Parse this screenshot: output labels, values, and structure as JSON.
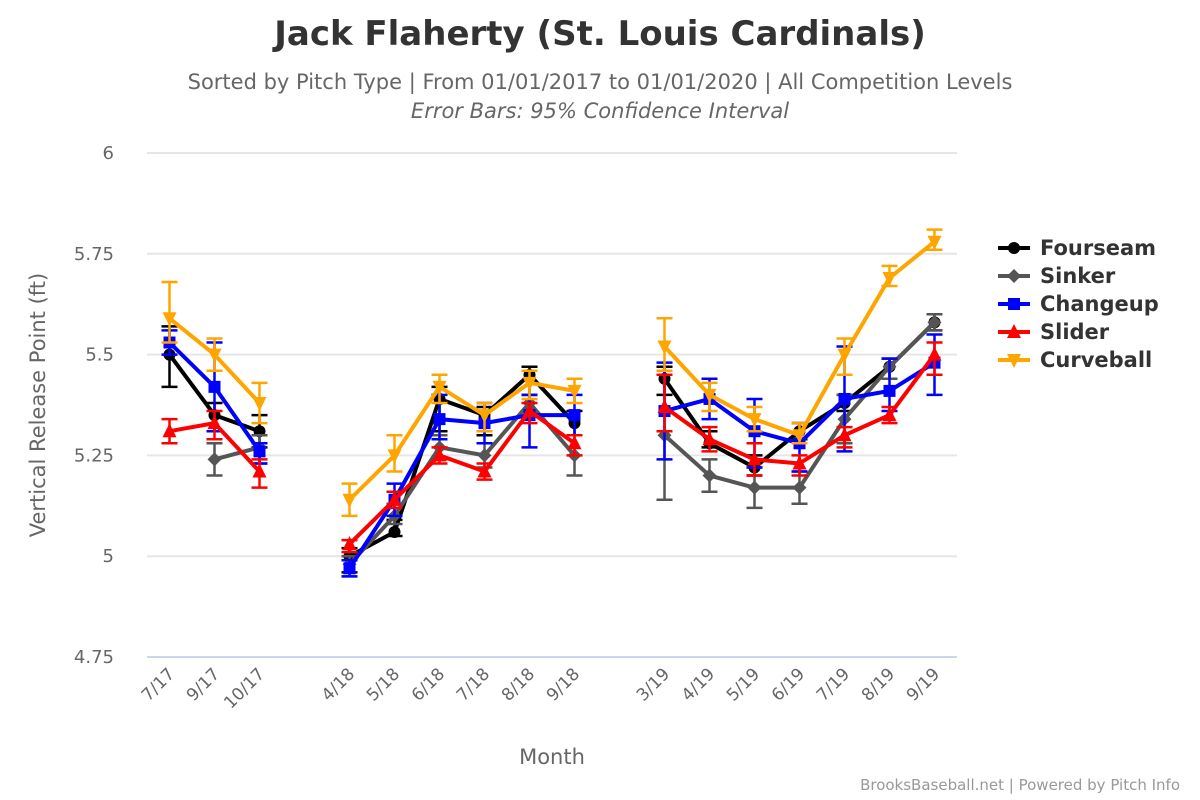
{
  "title": "Jack Flaherty (St. Louis Cardinals)",
  "subtitle": "Sorted by Pitch Type | From 01/01/2017 to 01/01/2020 | All Competition Levels",
  "subtitle2": "Error Bars: 95% Confidence Interval",
  "credits": "BrooksBaseball.net | Powered by Pitch Info",
  "chart_data": {
    "type": "line",
    "title": "Jack Flaherty (St. Louis Cardinals)",
    "xlabel": "Month",
    "ylabel": "Vertical Release Point (ft)",
    "ylim": [
      4.75,
      6
    ],
    "yticks": [
      "4.75",
      "5",
      "5.25",
      "5.5",
      "5.75",
      "6"
    ],
    "x_slots": 18,
    "x_index": [
      0,
      1,
      2,
      4,
      5,
      6,
      7,
      8,
      9,
      11,
      12,
      13,
      14,
      15,
      16,
      17
    ],
    "categories": [
      "7/17",
      "9/17",
      "10/17",
      "4/18",
      "5/18",
      "6/18",
      "7/18",
      "8/18",
      "9/18",
      "3/19",
      "4/19",
      "5/19",
      "6/19",
      "7/19",
      "8/19",
      "9/19"
    ],
    "legend_position": "right",
    "grid": true,
    "series": [
      {
        "name": "Fourseam",
        "color": "#000000",
        "marker": "circle",
        "values": [
          5.5,
          5.35,
          5.31,
          5.0,
          5.06,
          5.39,
          5.35,
          5.45,
          5.33,
          5.44,
          5.28,
          5.22,
          5.31,
          5.38,
          5.47,
          5.58
        ],
        "error": [
          [
            5.42,
            5.57
          ],
          [
            5.31,
            5.38
          ],
          [
            5.27,
            5.35
          ],
          [
            4.96,
            5.02
          ],
          [
            5.05,
            5.09
          ],
          [
            5.31,
            5.42
          ],
          [
            5.3,
            5.37
          ],
          [
            5.4,
            5.47
          ],
          [
            5.3,
            5.36
          ],
          [
            5.4,
            5.47
          ],
          [
            5.27,
            5.31
          ],
          [
            5.2,
            5.25
          ],
          [
            5.29,
            5.33
          ],
          [
            5.36,
            5.4
          ],
          [
            5.44,
            5.49
          ],
          [
            5.56,
            5.6
          ]
        ]
      },
      {
        "name": "Sinker",
        "color": "#555555",
        "marker": "diamond",
        "values": [
          null,
          5.24,
          5.27,
          4.98,
          5.1,
          5.27,
          5.25,
          5.38,
          5.25,
          5.3,
          5.2,
          5.17,
          5.17,
          5.34,
          5.47,
          5.58
        ],
        "error": [
          null,
          [
            5.2,
            5.28
          ],
          [
            5.23,
            5.3
          ],
          [
            4.95,
            5.0
          ],
          [
            5.08,
            5.13
          ],
          [
            5.24,
            5.3
          ],
          [
            5.22,
            5.28
          ],
          [
            5.35,
            5.4
          ],
          [
            5.2,
            5.3
          ],
          [
            5.14,
            5.46
          ],
          [
            5.16,
            5.24
          ],
          [
            5.12,
            5.22
          ],
          [
            5.13,
            5.21
          ],
          [
            5.28,
            5.4
          ],
          [
            5.44,
            5.49
          ],
          [
            5.56,
            5.6
          ]
        ]
      },
      {
        "name": "Changeup",
        "color": "#0000ff",
        "marker": "square",
        "values": [
          5.53,
          5.42,
          5.26,
          4.97,
          5.14,
          5.34,
          5.33,
          5.35,
          5.35,
          5.36,
          5.39,
          5.31,
          5.28,
          5.39,
          5.41,
          5.48
        ],
        "error": [
          [
            5.5,
            5.56
          ],
          [
            5.31,
            5.53
          ],
          [
            5.23,
            5.28
          ],
          [
            4.95,
            4.99
          ],
          [
            5.1,
            5.18
          ],
          [
            5.29,
            5.4
          ],
          [
            5.28,
            5.38
          ],
          [
            5.27,
            5.4
          ],
          [
            5.3,
            5.4
          ],
          [
            5.24,
            5.48
          ],
          [
            5.34,
            5.44
          ],
          [
            5.22,
            5.39
          ],
          [
            5.21,
            5.33
          ],
          [
            5.26,
            5.52
          ],
          [
            5.36,
            5.49
          ],
          [
            5.4,
            5.55
          ]
        ]
      },
      {
        "name": "Slider",
        "color": "#ff0000",
        "marker": "triangle-up",
        "values": [
          5.31,
          5.33,
          5.21,
          5.03,
          5.14,
          5.25,
          5.21,
          5.36,
          5.28,
          5.37,
          5.29,
          5.24,
          5.23,
          5.3,
          5.35,
          5.5
        ],
        "error": [
          [
            5.28,
            5.34
          ],
          [
            5.29,
            5.36
          ],
          [
            5.17,
            5.24
          ],
          [
            5.01,
            5.04
          ],
          [
            5.12,
            5.16
          ],
          [
            5.23,
            5.27
          ],
          [
            5.19,
            5.23
          ],
          [
            5.33,
            5.38
          ],
          [
            5.25,
            5.3
          ],
          [
            5.31,
            5.45
          ],
          [
            5.26,
            5.32
          ],
          [
            5.2,
            5.28
          ],
          [
            5.2,
            5.25
          ],
          [
            5.27,
            5.32
          ],
          [
            5.33,
            5.37
          ],
          [
            5.45,
            5.53
          ]
        ]
      },
      {
        "name": "Curveball",
        "color": "#ffa500",
        "marker": "triangle-down",
        "values": [
          5.59,
          5.5,
          5.38,
          5.14,
          5.25,
          5.42,
          5.35,
          5.43,
          5.41,
          5.52,
          5.4,
          5.34,
          5.3,
          5.5,
          5.69,
          5.78
        ],
        "error": [
          [
            5.53,
            5.68
          ],
          [
            5.46,
            5.54
          ],
          [
            5.33,
            5.43
          ],
          [
            5.1,
            5.18
          ],
          [
            5.21,
            5.3
          ],
          [
            5.38,
            5.45
          ],
          [
            5.31,
            5.38
          ],
          [
            5.39,
            5.46
          ],
          [
            5.38,
            5.44
          ],
          [
            5.46,
            5.59
          ],
          [
            5.36,
            5.43
          ],
          [
            5.31,
            5.37
          ],
          [
            5.28,
            5.33
          ],
          [
            5.45,
            5.54
          ],
          [
            5.67,
            5.72
          ],
          [
            5.76,
            5.81
          ]
        ]
      }
    ]
  }
}
